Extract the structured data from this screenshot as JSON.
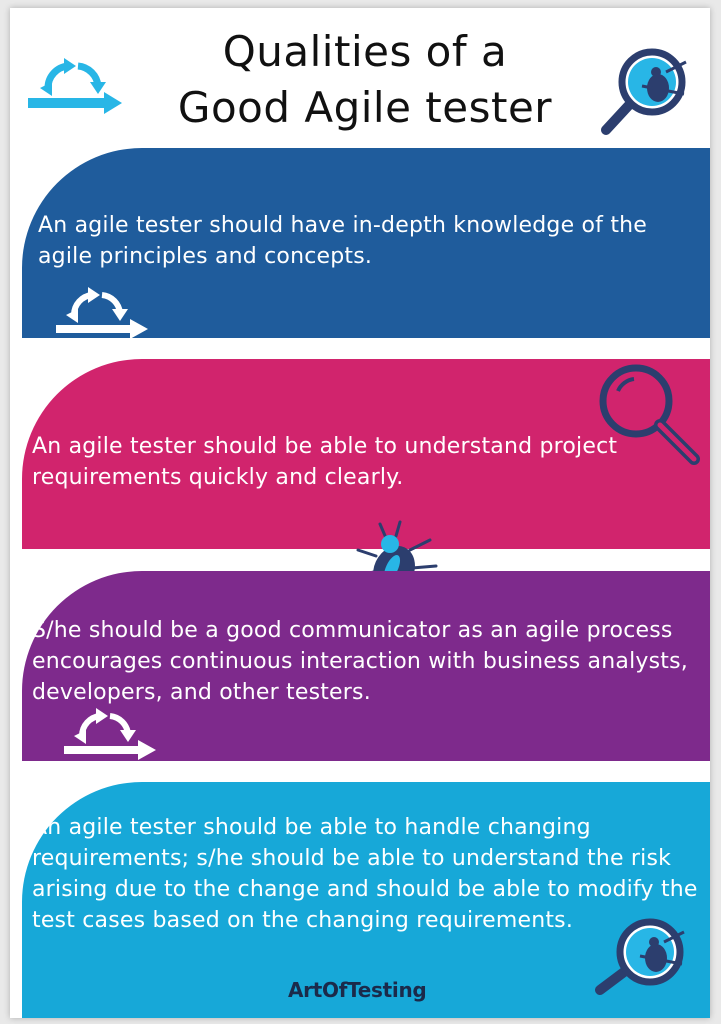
{
  "header": {
    "title_line1": "Qualities of a",
    "title_line2": "Good Agile tester"
  },
  "colors": {
    "band1": "#1f5c9c",
    "band2": "#d1246d",
    "band3": "#7e2a8c",
    "band4": "#17a8d8",
    "navy": "#2c3e6e",
    "accent_cyan": "#28b6e6"
  },
  "qualities": [
    {
      "text": "An agile tester should have in-depth knowledge of the agile principles and concepts.",
      "icon": "agile-cycle-icon"
    },
    {
      "text": "An agile tester should be able to understand project requirements quickly and clearly.",
      "icon": "magnifier-icon"
    },
    {
      "text": "S/he should be a good communicator as an agile process encourages continuous interaction with business analysts, developers, and other testers.",
      "icon": "agile-cycle-icon"
    },
    {
      "text": "An agile tester should be able to handle changing requirements; s/he should be able to understand the risk arising due to the change and should be able to modify the test cases based on the changing requirements.",
      "icon": "bug-magnifier-icon"
    }
  ],
  "footer": {
    "brand": "ArtOfTesting"
  }
}
